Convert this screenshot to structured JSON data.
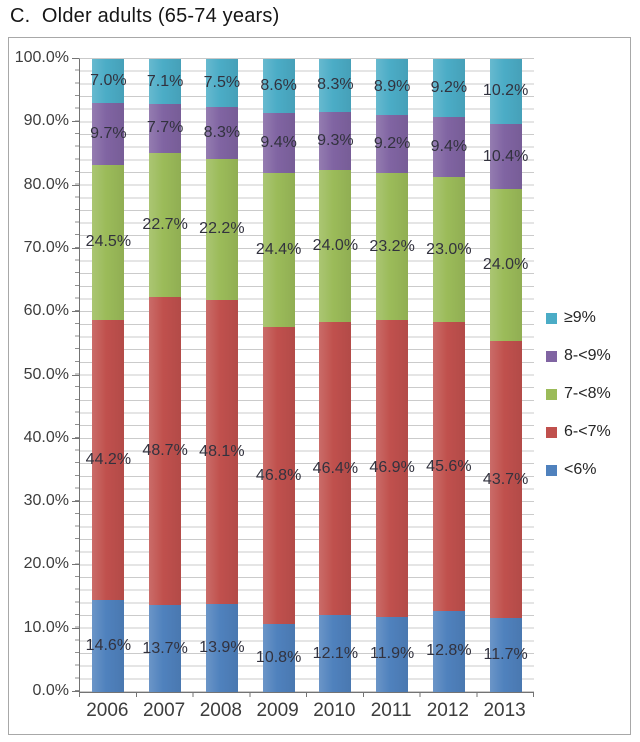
{
  "title": "C.  Older adults (65-74 years)",
  "chart_data": {
    "type": "bar",
    "stacked": true,
    "percent_stacked": true,
    "title": "C.  Older adults (65-74 years)",
    "categories": [
      "2006",
      "2007",
      "2008",
      "2009",
      "2010",
      "2011",
      "2012",
      "2013"
    ],
    "series": [
      {
        "name": "<6%",
        "color": "#4f81bd",
        "values": [
          14.6,
          13.7,
          13.9,
          10.8,
          12.1,
          11.9,
          12.8,
          11.7
        ]
      },
      {
        "name": "6-<7%",
        "color": "#c0504d",
        "values": [
          44.2,
          48.7,
          48.1,
          46.8,
          46.4,
          46.9,
          45.6,
          43.7
        ]
      },
      {
        "name": "7-<8%",
        "color": "#9bbb59",
        "values": [
          24.5,
          22.7,
          22.2,
          24.4,
          24.0,
          23.2,
          23.0,
          24.0
        ]
      },
      {
        "name": "8-<9%",
        "color": "#8064a2",
        "values": [
          9.7,
          7.7,
          8.3,
          9.4,
          9.3,
          9.2,
          9.4,
          10.4
        ]
      },
      {
        "name": "≥9%",
        "color": "#4bacc6",
        "values": [
          7.0,
          7.1,
          7.5,
          8.6,
          8.3,
          8.9,
          9.2,
          10.2
        ]
      }
    ],
    "data_label_suffix": "%",
    "legend_position": "right",
    "legend_order_top_to_bottom": [
      "≥9%",
      "8-<9%",
      "7-<8%",
      "6-<7%",
      "<6%"
    ],
    "y_axis": {
      "min": 0,
      "max": 100,
      "major_step": 10,
      "minor_step": 2,
      "tick_labels": [
        "100.0%",
        "90.0%",
        "80.0%",
        "70.0%",
        "60.0%",
        "50.0%",
        "40.0%",
        "30.0%",
        "20.0%",
        "10.0%",
        "0.0%"
      ]
    },
    "grid": "minor-horizontal"
  }
}
